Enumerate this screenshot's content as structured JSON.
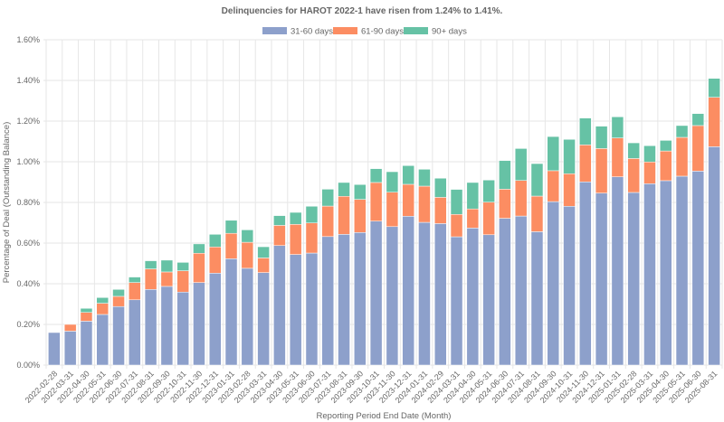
{
  "chart_data": {
    "type": "bar",
    "stacked": true,
    "title": "Delinquencies for HAROT 2022-1 have risen from 1.24% to 1.41%.",
    "xlabel": "Reporting Period End Date (Month)",
    "ylabel": "Percentage of Deal (Outstanding Balance)",
    "ylim": [
      0,
      1.6
    ],
    "yticks": [
      0,
      0.2,
      0.4,
      0.6,
      0.8,
      1.0,
      1.2,
      1.4,
      1.6
    ],
    "ytick_labels": [
      "0.00%",
      "0.20%",
      "0.40%",
      "0.60%",
      "0.80%",
      "1.00%",
      "1.20%",
      "1.40%",
      "1.60%"
    ],
    "grid": true,
    "legend_position": "top-center",
    "categories": [
      "2022-02-28",
      "2022-03-31",
      "2022-04-30",
      "2022-05-31",
      "2022-06-30",
      "2022-07-31",
      "2022-08-31",
      "2022-09-30",
      "2022-10-31",
      "2022-11-30",
      "2022-12-31",
      "2023-01-31",
      "2023-02-28",
      "2023-03-31",
      "2023-04-30",
      "2023-05-31",
      "2023-06-30",
      "2023-07-31",
      "2023-08-31",
      "2023-09-30",
      "2023-10-31",
      "2023-11-30",
      "2023-12-31",
      "2024-01-31",
      "2024-02-29",
      "2024-03-31",
      "2024-04-30",
      "2024-05-31",
      "2024-06-30",
      "2024-07-31",
      "2024-08-31",
      "2024-09-30",
      "2024-10-31",
      "2024-11-30",
      "2024-12-31",
      "2025-01-31",
      "2025-02-28",
      "2025-03-31",
      "2025-04-30",
      "2025-05-31",
      "2025-06-30",
      "2025-08-31"
    ],
    "series": [
      {
        "name": "31-60 days",
        "color": "#8da0cb",
        "values": [
          0.16,
          0.167,
          0.216,
          0.249,
          0.288,
          0.321,
          0.372,
          0.387,
          0.359,
          0.406,
          0.452,
          0.523,
          0.476,
          0.455,
          0.588,
          0.544,
          0.551,
          0.632,
          0.643,
          0.652,
          0.708,
          0.681,
          0.732,
          0.702,
          0.696,
          0.631,
          0.674,
          0.641,
          0.722,
          0.733,
          0.656,
          0.804,
          0.781,
          0.901,
          0.846,
          0.926,
          0.849,
          0.892,
          0.907,
          0.929,
          0.954,
          1.074
        ]
      },
      {
        "name": "61-90 days",
        "color": "#fc8d62",
        "values": [
          0,
          0.033,
          0.043,
          0.055,
          0.05,
          0.085,
          0.101,
          0.071,
          0.105,
          0.144,
          0.129,
          0.125,
          0.128,
          0.072,
          0.099,
          0.148,
          0.148,
          0.15,
          0.187,
          0.163,
          0.19,
          0.169,
          0.157,
          0.178,
          0.129,
          0.11,
          0.094,
          0.16,
          0.143,
          0.175,
          0.175,
          0.152,
          0.16,
          0.182,
          0.219,
          0.191,
          0.167,
          0.107,
          0.146,
          0.191,
          0.224,
          0.243
        ]
      },
      {
        "name": "90+ days",
        "color": "#66c2a5",
        "values": [
          0,
          0,
          0.02,
          0.028,
          0.034,
          0.027,
          0.04,
          0.058,
          0.041,
          0.046,
          0.062,
          0.064,
          0.061,
          0.055,
          0.048,
          0.059,
          0.082,
          0.083,
          0.068,
          0.073,
          0.068,
          0.101,
          0.092,
          0.083,
          0.094,
          0.123,
          0.13,
          0.109,
          0.141,
          0.157,
          0.16,
          0.168,
          0.169,
          0.132,
          0.11,
          0.104,
          0.077,
          0.08,
          0.052,
          0.058,
          0.059,
          0.093
        ]
      }
    ]
  }
}
